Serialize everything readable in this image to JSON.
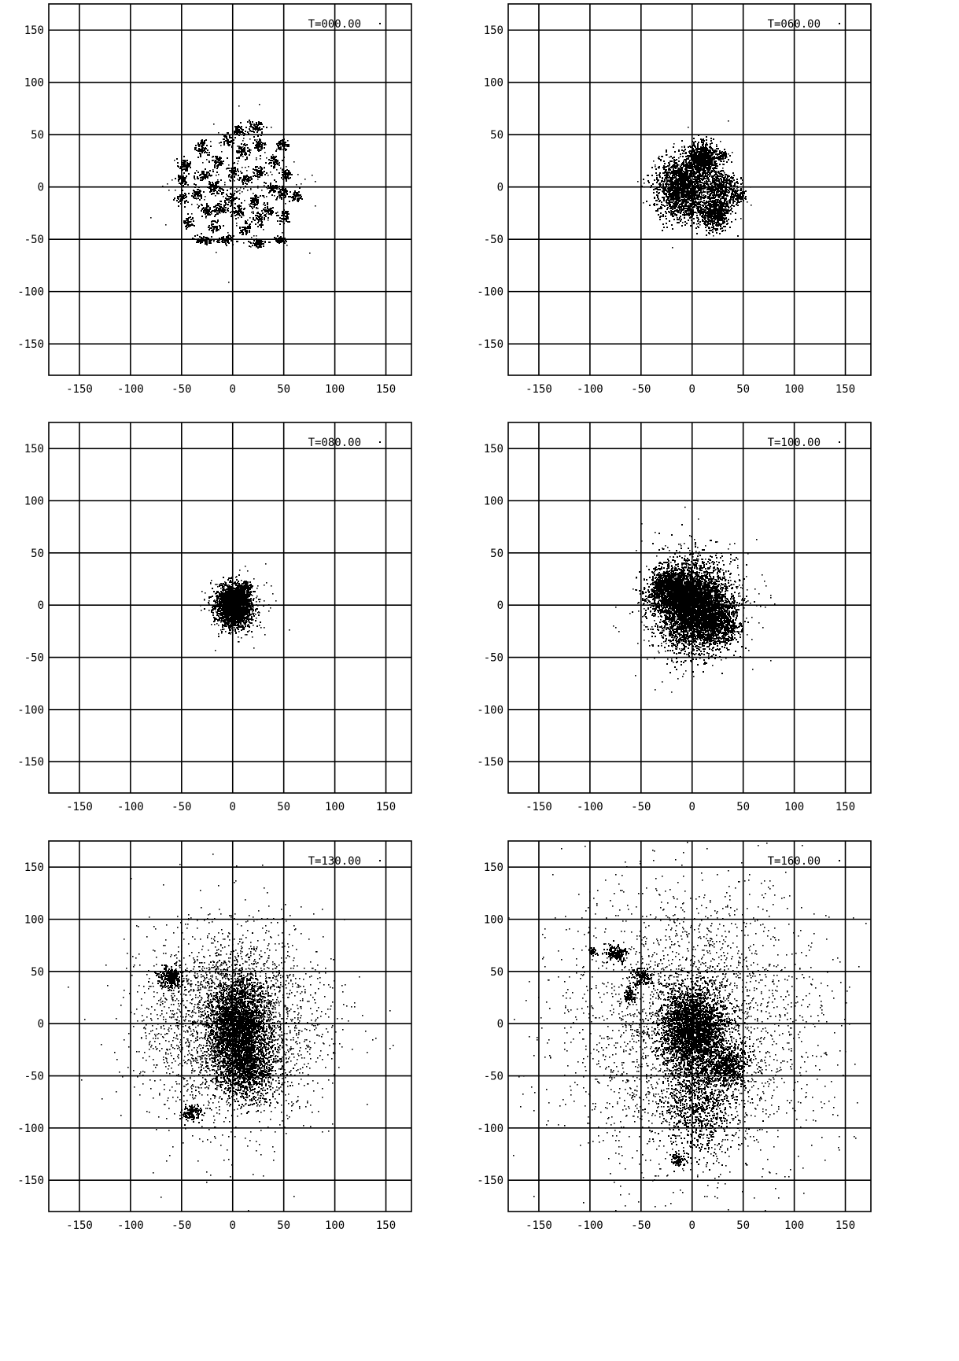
{
  "chart_data": [
    {
      "type": "scatter",
      "title": "T=000.00",
      "xlim": [
        -180,
        175
      ],
      "ylim": [
        -180,
        175
      ],
      "xticks": [
        -150,
        -100,
        -50,
        0,
        50,
        100,
        150
      ],
      "yticks": [
        150,
        100,
        50,
        0,
        -50,
        -100,
        -150
      ],
      "xticklabels": [
        "-150",
        "-100",
        "-50",
        "0",
        "50",
        "100",
        "150"
      ],
      "yticklabels": [
        "150",
        "100",
        "50",
        "0",
        "-50",
        "-100",
        "-150"
      ],
      "grid": true,
      "distribution": "Particles grouped in ~36 small compact clumps filling roughly x from -55 to 75, y from -58 to 62",
      "clusters": [
        {
          "cx": -48,
          "cy": 22,
          "sx": 3,
          "sy": 3,
          "n": 60
        },
        {
          "cx": -50,
          "cy": 8,
          "sx": 3,
          "sy": 3,
          "n": 55
        },
        {
          "cx": -50,
          "cy": -10,
          "sx": 3,
          "sy": 3,
          "n": 55
        },
        {
          "cx": -44,
          "cy": -33,
          "sx": 3,
          "sy": 3,
          "n": 50
        },
        {
          "cx": -30,
          "cy": 38,
          "sx": 3,
          "sy": 4,
          "n": 70
        },
        {
          "cx": -28,
          "cy": 12,
          "sx": 4,
          "sy": 3,
          "n": 60
        },
        {
          "cx": -35,
          "cy": -5,
          "sx": 3,
          "sy": 3,
          "n": 50
        },
        {
          "cx": -26,
          "cy": -22,
          "sx": 3,
          "sy": 3,
          "n": 60
        },
        {
          "cx": -28,
          "cy": -50,
          "sx": 5,
          "sy": 2,
          "n": 70
        },
        {
          "cx": -15,
          "cy": 25,
          "sx": 3,
          "sy": 3,
          "n": 55
        },
        {
          "cx": -18,
          "cy": 0,
          "sx": 4,
          "sy": 3,
          "n": 70
        },
        {
          "cx": -12,
          "cy": -20,
          "sx": 4,
          "sy": 3,
          "n": 70
        },
        {
          "cx": -18,
          "cy": -37,
          "sx": 3,
          "sy": 3,
          "n": 50
        },
        {
          "cx": -5,
          "cy": 45,
          "sx": 3,
          "sy": 3,
          "n": 50
        },
        {
          "cx": 0,
          "cy": 15,
          "sx": 3,
          "sy": 3,
          "n": 55
        },
        {
          "cx": -2,
          "cy": -10,
          "sx": 3,
          "sy": 3,
          "n": 55
        },
        {
          "cx": -8,
          "cy": -50,
          "sx": 4,
          "sy": 2,
          "n": 55
        },
        {
          "cx": 5,
          "cy": 55,
          "sx": 3,
          "sy": 3,
          "n": 55
        },
        {
          "cx": 10,
          "cy": 35,
          "sx": 3,
          "sy": 3,
          "n": 60
        },
        {
          "cx": 12,
          "cy": 8,
          "sx": 3,
          "sy": 3,
          "n": 50
        },
        {
          "cx": 5,
          "cy": -22,
          "sx": 3,
          "sy": 3,
          "n": 55
        },
        {
          "cx": 12,
          "cy": -40,
          "sx": 3,
          "sy": 3,
          "n": 50
        },
        {
          "cx": 22,
          "cy": 58,
          "sx": 4,
          "sy": 3,
          "n": 70
        },
        {
          "cx": 25,
          "cy": 40,
          "sx": 3,
          "sy": 3,
          "n": 55
        },
        {
          "cx": 25,
          "cy": 15,
          "sx": 3,
          "sy": 3,
          "n": 50
        },
        {
          "cx": 22,
          "cy": -12,
          "sx": 3,
          "sy": 3,
          "n": 55
        },
        {
          "cx": 25,
          "cy": -30,
          "sx": 3,
          "sy": 3,
          "n": 55
        },
        {
          "cx": 25,
          "cy": -53,
          "sx": 4,
          "sy": 2,
          "n": 60
        },
        {
          "cx": 40,
          "cy": 25,
          "sx": 3,
          "sy": 3,
          "n": 55
        },
        {
          "cx": 38,
          "cy": 0,
          "sx": 3,
          "sy": 3,
          "n": 50
        },
        {
          "cx": 35,
          "cy": -22,
          "sx": 3,
          "sy": 3,
          "n": 50
        },
        {
          "cx": 45,
          "cy": -50,
          "sx": 3,
          "sy": 2,
          "n": 55
        },
        {
          "cx": 48,
          "cy": 40,
          "sx": 3,
          "sy": 3,
          "n": 55
        },
        {
          "cx": 52,
          "cy": 12,
          "sx": 3,
          "sy": 3,
          "n": 55
        },
        {
          "cx": 48,
          "cy": -5,
          "sx": 3,
          "sy": 3,
          "n": 50
        },
        {
          "cx": 50,
          "cy": -28,
          "sx": 3,
          "sy": 3,
          "n": 55
        },
        {
          "cx": 62,
          "cy": -8,
          "sx": 3,
          "sy": 3,
          "n": 50
        }
      ],
      "scatter": {
        "cx": 10,
        "cy": 0,
        "sx": 30,
        "sy": 28,
        "n": 220
      }
    },
    {
      "type": "scatter",
      "title": "T=060.00",
      "xlim": [
        -180,
        175
      ],
      "ylim": [
        -180,
        175
      ],
      "xticks": [
        -150,
        -100,
        -50,
        0,
        50,
        100,
        150
      ],
      "yticks": [
        150,
        100,
        50,
        0,
        -50,
        -100,
        -150
      ],
      "xticklabels": [
        "-150",
        "-100",
        "-50",
        "0",
        "50",
        "100",
        "150"
      ],
      "yticklabels": [
        "150",
        "100",
        "50",
        "0",
        "-50",
        "-100",
        "-150"
      ],
      "grid": true,
      "distribution": "Clumps merged into a compact blob centred near (0,0), extent about x -45 to 55, y -55 to 50",
      "clusters": [
        {
          "cx": -10,
          "cy": 0,
          "sx": 12,
          "sy": 14,
          "n": 1600
        },
        {
          "cx": 10,
          "cy": 28,
          "sx": 7,
          "sy": 7,
          "n": 700
        },
        {
          "cx": 22,
          "cy": -25,
          "sx": 7,
          "sy": 8,
          "n": 500
        },
        {
          "cx": 28,
          "cy": 0,
          "sx": 8,
          "sy": 8,
          "n": 400
        },
        {
          "cx": 45,
          "cy": -8,
          "sx": 3,
          "sy": 3,
          "n": 70
        },
        {
          "cx": 28,
          "cy": 30,
          "sx": 3,
          "sy": 3,
          "n": 60
        }
      ],
      "scatter": {
        "cx": 5,
        "cy": 0,
        "sx": 20,
        "sy": 18,
        "n": 300
      }
    },
    {
      "type": "scatter",
      "title": "T=080.00",
      "xlim": [
        -180,
        175
      ],
      "ylim": [
        -180,
        175
      ],
      "xticks": [
        -150,
        -100,
        -50,
        0,
        50,
        100,
        150
      ],
      "yticks": [
        150,
        100,
        50,
        0,
        -50,
        -100,
        -150
      ],
      "xticklabels": [
        "-150",
        "-100",
        "-50",
        "0",
        "50",
        "100",
        "150"
      ],
      "yticklabels": [
        "150",
        "100",
        "50",
        "0",
        "-50",
        "-100",
        "-150"
      ],
      "grid": true,
      "distribution": "Very compact dense core centred near (0,0), radius about 20",
      "clusters": [
        {
          "cx": 0,
          "cy": 0,
          "sx": 8,
          "sy": 9,
          "n": 2200
        },
        {
          "cx": 12,
          "cy": 18,
          "sx": 3,
          "sy": 3,
          "n": 120
        }
      ],
      "scatter": {
        "cx": 2,
        "cy": -2,
        "sx": 14,
        "sy": 14,
        "n": 350
      }
    },
    {
      "type": "scatter",
      "title": "T=100.00",
      "xlim": [
        -180,
        175
      ],
      "ylim": [
        -180,
        175
      ],
      "xticks": [
        -150,
        -100,
        -50,
        0,
        50,
        100,
        150
      ],
      "yticks": [
        150,
        100,
        50,
        0,
        -50,
        -100,
        -150
      ],
      "xticklabels": [
        "-150",
        "-100",
        "-50",
        "0",
        "50",
        "100",
        "150"
      ],
      "yticklabels": [
        "150",
        "100",
        "50",
        "0",
        "-50",
        "-100",
        "-150"
      ],
      "grid": true,
      "distribution": "Re-expanded cloud centred near (0,0), extent about x -55 to 65, y -60 to 65",
      "clusters": [
        {
          "cx": 0,
          "cy": 0,
          "sx": 16,
          "sy": 20,
          "n": 3500
        },
        {
          "cx": -25,
          "cy": 15,
          "sx": 10,
          "sy": 10,
          "n": 900
        },
        {
          "cx": 25,
          "cy": -15,
          "sx": 10,
          "sy": 12,
          "n": 700
        }
      ],
      "scatter": {
        "cx": 0,
        "cy": 0,
        "sx": 26,
        "sy": 26,
        "n": 900
      }
    },
    {
      "type": "scatter",
      "title": "T=130.00",
      "xlim": [
        -180,
        175
      ],
      "ylim": [
        -180,
        175
      ],
      "xticks": [
        -150,
        -100,
        -50,
        0,
        50,
        100,
        150
      ],
      "yticks": [
        150,
        100,
        50,
        0,
        -50,
        -100,
        -150
      ],
      "xticklabels": [
        "-150",
        "-100",
        "-50",
        "0",
        "50",
        "100",
        "150"
      ],
      "yticklabels": [
        "150",
        "100",
        "50",
        "0",
        "-50",
        "-100",
        "-150"
      ],
      "grid": true,
      "distribution": "Dense core near (5,-5) with an extended halo out to about radius 110; secondary clump near (-62,45)",
      "clusters": [
        {
          "cx": 5,
          "cy": -5,
          "sx": 14,
          "sy": 24,
          "n": 2600
        },
        {
          "cx": -62,
          "cy": 45,
          "sx": 6,
          "sy": 5,
          "n": 250
        },
        {
          "cx": -40,
          "cy": -85,
          "sx": 5,
          "sy": 5,
          "n": 120
        },
        {
          "cx": 15,
          "cy": -45,
          "sx": 14,
          "sy": 14,
          "n": 600
        }
      ],
      "scatter": {
        "cx": 0,
        "cy": 0,
        "sx": 42,
        "sy": 45,
        "n": 3200
      }
    },
    {
      "type": "scatter",
      "title": "T=160.00",
      "xlim": [
        -180,
        175
      ],
      "ylim": [
        -180,
        175
      ],
      "xticks": [
        -150,
        -100,
        -50,
        0,
        50,
        100,
        150
      ],
      "yticks": [
        150,
        100,
        50,
        0,
        -50,
        -100,
        -150
      ],
      "xticklabels": [
        "-150",
        "-100",
        "-50",
        "0",
        "50",
        "100",
        "150"
      ],
      "yticklabels": [
        "150",
        "100",
        "50",
        "0",
        "-50",
        "-100",
        "-150"
      ],
      "grid": true,
      "distribution": "Dense core near (0,-5) with sparse halo filling most of the frame; small clumps near (-75,68), (-50,45), (-15,-130)",
      "clusters": [
        {
          "cx": 0,
          "cy": -5,
          "sx": 16,
          "sy": 20,
          "n": 2600
        },
        {
          "cx": -75,
          "cy": 68,
          "sx": 5,
          "sy": 4,
          "n": 160
        },
        {
          "cx": -98,
          "cy": 70,
          "sx": 2,
          "sy": 2,
          "n": 40
        },
        {
          "cx": -50,
          "cy": 45,
          "sx": 5,
          "sy": 4,
          "n": 120
        },
        {
          "cx": -62,
          "cy": 28,
          "sx": 3,
          "sy": 4,
          "n": 80
        },
        {
          "cx": -15,
          "cy": -130,
          "sx": 3,
          "sy": 3,
          "n": 70
        },
        {
          "cx": 35,
          "cy": -40,
          "sx": 10,
          "sy": 10,
          "n": 500
        },
        {
          "cx": 5,
          "cy": -75,
          "sx": 18,
          "sy": 25,
          "n": 700
        }
      ],
      "scatter": {
        "cx": 0,
        "cy": -5,
        "sx": 62,
        "sy": 68,
        "n": 3000
      }
    }
  ]
}
